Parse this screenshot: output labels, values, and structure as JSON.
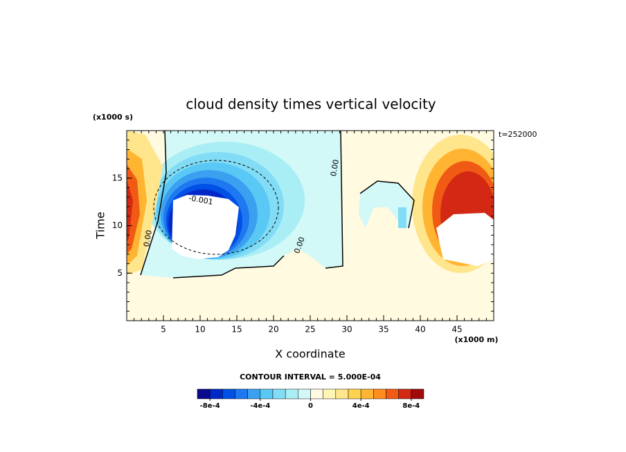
{
  "chart_data": {
    "type": "contour",
    "title": "cloud density times vertical velocity",
    "y_unit": "(x1000 s)",
    "x_unit": "(x1000 m)",
    "time_label": "t=252000",
    "x_label": "X coordinate",
    "y_label": "Time",
    "xlim": [
      0,
      50
    ],
    "xticks": [
      5,
      10,
      15,
      20,
      25,
      30,
      35,
      40,
      45
    ],
    "ylim": [
      0,
      20
    ],
    "yticks": [
      5,
      10,
      15
    ],
    "contour_interval_label": "CONTOUR INTERVAL = 5.000E-04",
    "contour_labels": [
      "0.00",
      "0.00",
      "-0.001",
      "0.00"
    ],
    "colorbar": {
      "lim": [
        -0.0009,
        0.0009
      ],
      "colors": [
        "#0a0a8c",
        "#0028c8",
        "#0050e6",
        "#1e78f0",
        "#3ca0f0",
        "#5ac8f5",
        "#82dcf5",
        "#aaeef5",
        "#d2f8f8",
        "#fffae0",
        "#fff5b4",
        "#ffe68c",
        "#ffd250",
        "#ffb432",
        "#ff8c1e",
        "#f05a14",
        "#d22814",
        "#a00a0a"
      ],
      "ticks": [
        {
          "value": -0.0008,
          "label": "-8e-4"
        },
        {
          "value": -0.0004,
          "label": "-4e-4"
        },
        0,
        {
          "value": 0.0004,
          "label": "4e-4"
        },
        {
          "value": 0.0008,
          "label": "8e-4"
        }
      ]
    }
  }
}
